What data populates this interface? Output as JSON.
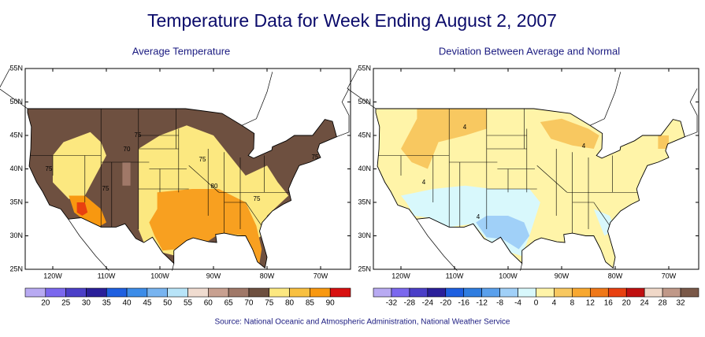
{
  "title": "Temperature Data for Week Ending August 2, 2007",
  "panels": [
    {
      "title": "Average Temperature",
      "lat_ticks": [
        "55N",
        "50N",
        "45N",
        "40N",
        "35N",
        "30N",
        "25N"
      ],
      "lon_ticks": [
        "120W",
        "110W",
        "100W",
        "90W",
        "80W",
        "70W"
      ],
      "contour_labels": [
        "75",
        "70",
        "75",
        "75",
        "75",
        "80",
        "75",
        "75"
      ],
      "colorbar": {
        "labels": [
          20,
          25,
          30,
          35,
          40,
          45,
          50,
          55,
          60,
          65,
          70,
          75,
          80,
          85,
          90
        ],
        "colors": [
          "#b8aaf2",
          "#7b68ee",
          "#4b3fc8",
          "#2a1f9a",
          "#1e5fe0",
          "#3c8ce8",
          "#78b4f0",
          "#b8e4f8",
          "#f0dcd0",
          "#c8a090",
          "#a07868",
          "#6e5040",
          "#fce880",
          "#f8c040",
          "#f89810",
          "#d81010"
        ]
      }
    },
    {
      "title": "Deviation Between Average and Normal",
      "lat_ticks": [
        "55N",
        "50N",
        "45N",
        "40N",
        "35N",
        "30N",
        "25N"
      ],
      "lon_ticks": [
        "120W",
        "110W",
        "100W",
        "90W",
        "80W",
        "70W"
      ],
      "contour_labels": [
        "4",
        "4",
        "4",
        "4"
      ],
      "colorbar": {
        "labels": [
          -32,
          -28,
          -24,
          -20,
          -16,
          -12,
          -8,
          -4,
          0,
          4,
          8,
          12,
          16,
          20,
          24,
          28,
          32
        ],
        "colors": [
          "#b8aaf2",
          "#7b68ee",
          "#4b3fc8",
          "#2a1f9a",
          "#1e5fe0",
          "#2f7de0",
          "#5aa0ec",
          "#a0d0f8",
          "#d8f8fc",
          "#fff4a8",
          "#f8c860",
          "#f8a830",
          "#f07818",
          "#e84010",
          "#c01010",
          "#f0d8c8",
          "#c09888",
          "#7a5848"
        ]
      }
    }
  ],
  "source": "Source:  National Oceanic and Atmospheric Administration, National Weather Service"
}
